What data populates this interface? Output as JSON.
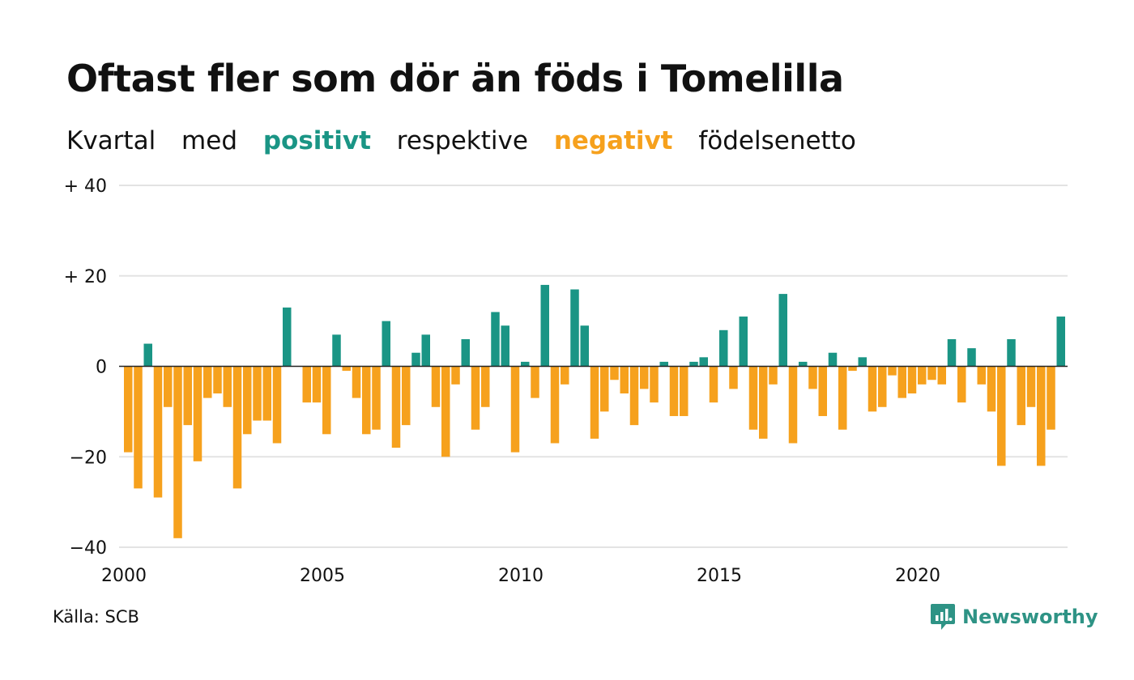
{
  "title": "Oftast fler som dör än föds i Tomelilla",
  "subtitle": {
    "part1": "Kvartal",
    "part2": "med",
    "positive": "positivt",
    "part3": "respektive",
    "negative": "negativt",
    "part4": "födelsenetto"
  },
  "source": "Källa: SCB",
  "brand": "Newsworthy",
  "colors": {
    "positive": "#1a9585",
    "negative": "#f6a11d",
    "grid": "#e3e3e3",
    "zero": "#222222"
  },
  "chart_data": {
    "type": "bar",
    "ylim": [
      -40,
      40
    ],
    "yticks": [
      {
        "value": 40,
        "label": "+ 40"
      },
      {
        "value": 20,
        "label": "+ 20"
      },
      {
        "value": 0,
        "label": "0"
      },
      {
        "value": -20,
        "label": "−20"
      },
      {
        "value": -40,
        "label": "−40"
      }
    ],
    "xticks": [
      {
        "value": 2000,
        "label": "2000"
      },
      {
        "value": 2005,
        "label": "2005"
      },
      {
        "value": 2010,
        "label": "2010"
      },
      {
        "value": 2015,
        "label": "2015"
      },
      {
        "value": 2020,
        "label": "2020"
      }
    ],
    "start_year": 2000,
    "values": [
      -19,
      -27,
      5,
      -29,
      -9,
      -38,
      -13,
      -21,
      -7,
      -6,
      -9,
      -27,
      -15,
      -12,
      -12,
      -17,
      13,
      0,
      -8,
      -8,
      -15,
      7,
      -1,
      -7,
      -15,
      -14,
      10,
      -18,
      -13,
      3,
      7,
      -9,
      -20,
      -4,
      6,
      -14,
      -9,
      12,
      9,
      -19,
      1,
      -7,
      18,
      -17,
      -4,
      17,
      9,
      -16,
      -10,
      -3,
      -6,
      -13,
      -5,
      -8,
      1,
      -11,
      -11,
      1,
      2,
      -8,
      8,
      -5,
      11,
      -14,
      -16,
      -4,
      16,
      -17,
      1,
      -5,
      -11,
      3,
      -14,
      -1,
      2,
      -10,
      -9,
      -2,
      -7,
      -6,
      -4,
      -3,
      -4,
      6,
      -8,
      4,
      -4,
      -10,
      -22,
      6,
      -13,
      -9,
      -22,
      -14,
      11
    ]
  }
}
